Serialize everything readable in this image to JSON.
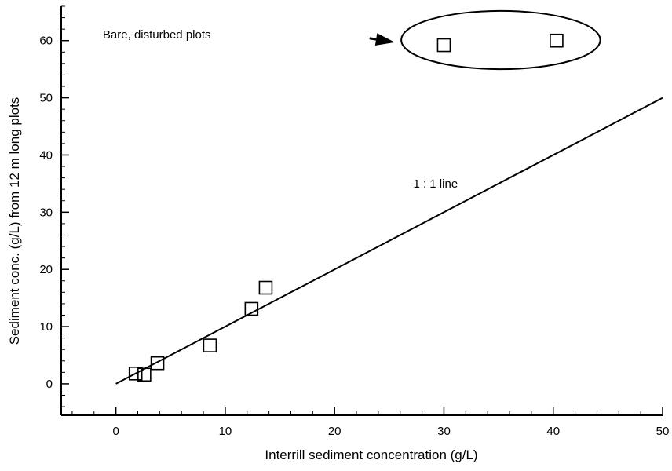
{
  "chart_data": {
    "type": "scatter",
    "title": "",
    "xlabel": "Interrill sediment concentration (g/L)",
    "ylabel": "Sediment conc. (g/L) from 12 m long plots",
    "xlim": [
      -5,
      50
    ],
    "ylim": [
      -5.5,
      66
    ],
    "xticks": [
      0,
      10,
      20,
      30,
      40,
      50
    ],
    "yticks": [
      0,
      10,
      20,
      30,
      40,
      50,
      60
    ],
    "x_minor_step": 2,
    "y_minor_step": 2,
    "grid": false,
    "marker": "open-square",
    "points": [
      {
        "x": 1.8,
        "y": 1.8
      },
      {
        "x": 2.6,
        "y": 1.6
      },
      {
        "x": 3.8,
        "y": 3.6
      },
      {
        "x": 8.6,
        "y": 6.7
      },
      {
        "x": 12.4,
        "y": 13.1
      },
      {
        "x": 13.7,
        "y": 16.8
      },
      {
        "x": 30.0,
        "y": 59.2
      },
      {
        "x": 40.3,
        "y": 60.0
      }
    ],
    "reference_line": {
      "label": "1 : 1 line",
      "x": [
        0,
        50
      ],
      "y": [
        0,
        50
      ]
    },
    "annotations": [
      {
        "text": "Bare, disturbed plots",
        "x": -1.2,
        "y": 60.4
      }
    ],
    "highlight": {
      "type": "ellipse",
      "encloses": "Bare, disturbed plots",
      "cx": 35.2,
      "cy": 60.1,
      "rx": 9.1,
      "ry": 5.1
    },
    "arrow": {
      "from": {
        "x": 23.2,
        "y": 60.4
      },
      "to": {
        "x": 25.5,
        "y": 59.7
      }
    }
  }
}
